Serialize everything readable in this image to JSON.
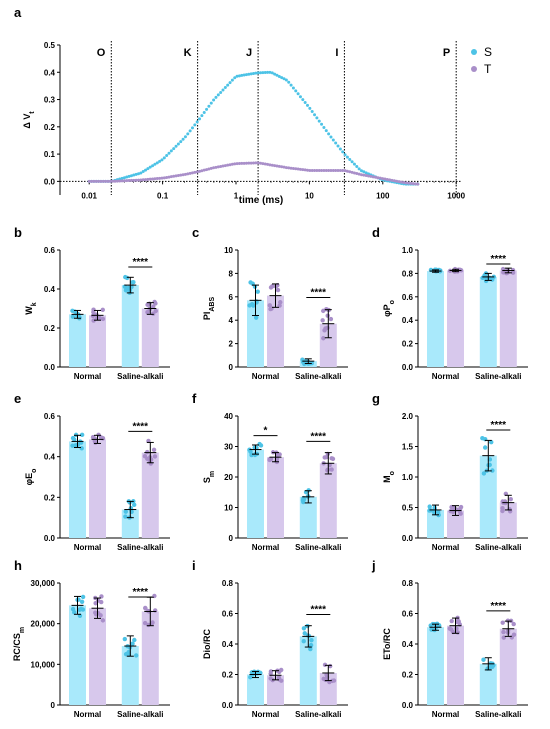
{
  "figure": {
    "panel_labels": [
      "a",
      "b",
      "c",
      "d",
      "e",
      "f",
      "g",
      "h",
      "i",
      "j"
    ]
  },
  "colors": {
    "S": "#4dc3e6",
    "T": "#a98fc9",
    "S_bar": "#a9e9fb",
    "T_bar": "#d7c8ec",
    "axis": "#000000"
  },
  "chart_data": [
    {
      "panel": "a",
      "type": "scatter",
      "xlabel": "time  (ms)",
      "ylabel": "ΔVt",
      "xscale": "log",
      "xlim": [
        0.004,
        1200
      ],
      "ylim": [
        -0.05,
        0.5
      ],
      "x_ticks": [
        0.01,
        0.1,
        1,
        10,
        100,
        1000
      ],
      "x_tick_labels": [
        "0.01",
        "0.1",
        "1",
        "10",
        "100",
        "1000"
      ],
      "y_ticks": [
        0.0,
        0.1,
        0.2,
        0.3,
        0.4,
        0.5
      ],
      "y_tick_labels": [
        "0.0",
        "0.1",
        "0.2",
        "0.3",
        "0.4",
        "0.5"
      ],
      "phase_lines": [
        {
          "label": "O",
          "x": 0.02
        },
        {
          "label": "K",
          "x": 0.3
        },
        {
          "label": "J",
          "x": 2
        },
        {
          "label": "I",
          "x": 30
        },
        {
          "label": "P",
          "x": 1000
        }
      ],
      "legend": {
        "placement": "top-right",
        "entries": [
          "S",
          "T"
        ]
      },
      "series": [
        {
          "name": "S",
          "x": [
            0.01,
            0.02,
            0.05,
            0.1,
            0.2,
            0.3,
            0.5,
            1,
            2,
            3,
            5,
            10,
            20,
            30,
            50,
            100,
            200,
            300
          ],
          "y": [
            0,
            0,
            0.03,
            0.08,
            0.16,
            0.22,
            0.3,
            0.385,
            0.398,
            0.4,
            0.37,
            0.27,
            0.16,
            0.1,
            0.04,
            0.005,
            -0.01,
            -0.01
          ]
        },
        {
          "name": "T",
          "x": [
            0.01,
            0.02,
            0.05,
            0.1,
            0.2,
            0.3,
            0.5,
            1,
            2,
            3,
            5,
            10,
            20,
            30,
            50,
            100,
            200,
            300
          ],
          "y": [
            0,
            0,
            0.005,
            0.012,
            0.025,
            0.035,
            0.05,
            0.065,
            0.068,
            0.06,
            0.05,
            0.04,
            0.04,
            0.04,
            0.025,
            0.01,
            -0.005,
            -0.01
          ]
        }
      ]
    },
    {
      "panel": "b",
      "type": "bar",
      "categories": [
        "Normal",
        "Saline-alkali"
      ],
      "ylabel": "Wk",
      "ylim": [
        0,
        0.6
      ],
      "y_ticks": [
        0.0,
        0.2,
        0.4,
        0.6
      ],
      "y_tick_labels": [
        "0.0",
        "0.2",
        "0.4",
        "0.6"
      ],
      "series": [
        {
          "name": "S",
          "values": [
            0.27,
            0.42
          ],
          "err": [
            0.02,
            0.04
          ]
        },
        {
          "name": "T",
          "values": [
            0.265,
            0.3
          ],
          "err": [
            0.025,
            0.03
          ]
        }
      ],
      "significance": [
        {
          "group": 1,
          "label": "****"
        }
      ]
    },
    {
      "panel": "c",
      "type": "bar",
      "categories": [
        "Normal",
        "Saline-alkali"
      ],
      "ylabel": "PIABS",
      "ylim": [
        0,
        10
      ],
      "y_ticks": [
        0,
        2,
        4,
        6,
        8,
        10
      ],
      "y_tick_labels": [
        "0",
        "2",
        "4",
        "6",
        "8",
        "10"
      ],
      "series": [
        {
          "name": "S",
          "values": [
            5.7,
            0.5
          ],
          "err": [
            1.3,
            0.2
          ]
        },
        {
          "name": "T",
          "values": [
            6.1,
            3.7
          ],
          "err": [
            1.0,
            1.2
          ]
        }
      ],
      "significance": [
        {
          "group": 1,
          "label": "****"
        }
      ]
    },
    {
      "panel": "d",
      "type": "bar",
      "categories": [
        "Normal",
        "Saline-alkali"
      ],
      "ylabel": "φPo",
      "ylim": [
        0,
        1.0
      ],
      "y_ticks": [
        0.0,
        0.2,
        0.4,
        0.6,
        0.8,
        1.0
      ],
      "y_tick_labels": [
        "0.0",
        "0.2",
        "0.4",
        "0.6",
        "0.8",
        "1.0"
      ],
      "series": [
        {
          "name": "S",
          "values": [
            0.82,
            0.77
          ],
          "err": [
            0.01,
            0.03
          ]
        },
        {
          "name": "T",
          "values": [
            0.825,
            0.825
          ],
          "err": [
            0.01,
            0.02
          ]
        }
      ],
      "significance": [
        {
          "group": 1,
          "label": "****"
        }
      ]
    },
    {
      "panel": "e",
      "type": "bar",
      "categories": [
        "Normal",
        "Saline-alkali"
      ],
      "ylabel": "φEo",
      "ylim": [
        0,
        0.6
      ],
      "y_ticks": [
        0.0,
        0.2,
        0.4,
        0.6
      ],
      "y_tick_labels": [
        "0.0",
        "0.2",
        "0.4",
        "0.6"
      ],
      "series": [
        {
          "name": "S",
          "values": [
            0.475,
            0.14
          ],
          "err": [
            0.03,
            0.04
          ]
        },
        {
          "name": "T",
          "values": [
            0.485,
            0.42
          ],
          "err": [
            0.02,
            0.05
          ]
        }
      ],
      "significance": [
        {
          "group": 1,
          "label": "****"
        }
      ]
    },
    {
      "panel": "f",
      "type": "bar",
      "categories": [
        "Normal",
        "Saline-alkali"
      ],
      "ylabel": "Sm",
      "ylim": [
        0,
        40
      ],
      "y_ticks": [
        0,
        10,
        20,
        30,
        40
      ],
      "y_tick_labels": [
        "0",
        "10",
        "20",
        "30",
        "40"
      ],
      "series": [
        {
          "name": "S",
          "values": [
            29,
            13.5
          ],
          "err": [
            1.5,
            2
          ]
        },
        {
          "name": "T",
          "values": [
            26.5,
            24.5
          ],
          "err": [
            1.5,
            3.5
          ]
        }
      ],
      "significance": [
        {
          "group": 0,
          "label": "*"
        },
        {
          "group": 1,
          "label": "****"
        }
      ]
    },
    {
      "panel": "g",
      "type": "bar",
      "categories": [
        "Normal",
        "Saline-alkali"
      ],
      "ylabel": "Mo",
      "ylim": [
        0,
        2.0
      ],
      "y_ticks": [
        0.0,
        0.5,
        1.0,
        1.5,
        2.0
      ],
      "y_tick_labels": [
        "0.0",
        "0.5",
        "1.0",
        "1.5",
        "2.0"
      ],
      "series": [
        {
          "name": "S",
          "values": [
            0.46,
            1.35
          ],
          "err": [
            0.08,
            0.25
          ]
        },
        {
          "name": "T",
          "values": [
            0.45,
            0.58
          ],
          "err": [
            0.08,
            0.12
          ]
        }
      ],
      "significance": [
        {
          "group": 1,
          "label": "****"
        }
      ]
    },
    {
      "panel": "h",
      "type": "bar",
      "categories": [
        "Normal",
        "Saline-alkali"
      ],
      "ylabel": "RC/CSm",
      "ylim": [
        0,
        30000
      ],
      "y_ticks": [
        0,
        10000,
        20000,
        30000
      ],
      "y_tick_labels": [
        "0",
        "10,000",
        "20,000",
        "30,000"
      ],
      "series": [
        {
          "name": "S",
          "values": [
            24500,
            14500
          ],
          "err": [
            2200,
            2500
          ]
        },
        {
          "name": "T",
          "values": [
            23800,
            23000
          ],
          "err": [
            2500,
            3500
          ]
        }
      ],
      "significance": [
        {
          "group": 1,
          "label": "****"
        }
      ]
    },
    {
      "panel": "i",
      "type": "bar",
      "categories": [
        "Normal",
        "Saline-alkali"
      ],
      "ylabel": "Dio/RC",
      "ylim": [
        0,
        0.8
      ],
      "y_ticks": [
        0.0,
        0.2,
        0.4,
        0.6,
        0.8
      ],
      "y_tick_labels": [
        "0.0",
        "0.2",
        "0.4",
        "0.6",
        "0.8"
      ],
      "series": [
        {
          "name": "S",
          "values": [
            0.2,
            0.45
          ],
          "err": [
            0.02,
            0.07
          ]
        },
        {
          "name": "T",
          "values": [
            0.195,
            0.21
          ],
          "err": [
            0.03,
            0.05
          ]
        }
      ],
      "significance": [
        {
          "group": 1,
          "label": "****"
        }
      ]
    },
    {
      "panel": "j",
      "type": "bar",
      "categories": [
        "Normal",
        "Saline-alkali"
      ],
      "ylabel": "ETo/RC",
      "ylim": [
        0,
        0.8
      ],
      "y_ticks": [
        0.0,
        0.2,
        0.4,
        0.6,
        0.8
      ],
      "y_tick_labels": [
        "0.0",
        "0.2",
        "0.4",
        "0.6",
        "0.8"
      ],
      "series": [
        {
          "name": "S",
          "values": [
            0.51,
            0.27
          ],
          "err": [
            0.02,
            0.04
          ]
        },
        {
          "name": "T",
          "values": [
            0.52,
            0.5
          ],
          "err": [
            0.05,
            0.05
          ]
        }
      ],
      "significance": [
        {
          "group": 1,
          "label": "****"
        }
      ]
    }
  ]
}
